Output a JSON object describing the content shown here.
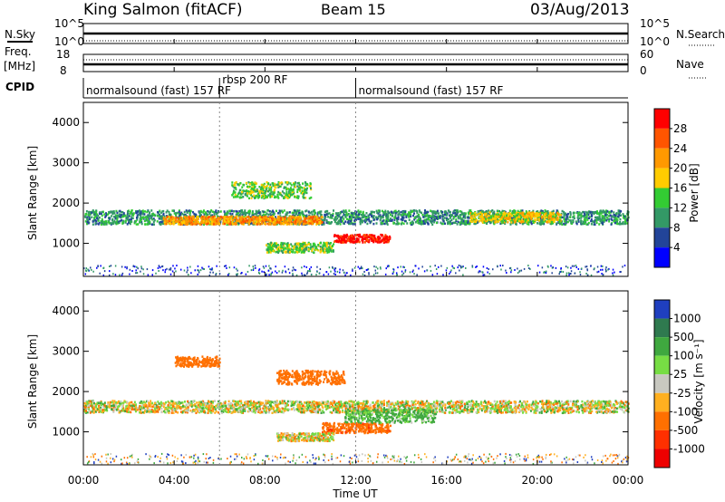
{
  "header": {
    "station": "King Salmon (fitACF)",
    "beam": "Beam 15",
    "date": "03/Aug/2013"
  },
  "noise_panel": {
    "left_label": "N.Sky",
    "right_label": "N.Search",
    "left_ticks": [
      "10^5",
      "10^0"
    ],
    "right_ticks": [
      "10^5",
      "10^0"
    ]
  },
  "freq_panel": {
    "left_label_top": "Freq.",
    "left_label_bottom": "[MHz]",
    "right_label": "Nave",
    "left_ticks": [
      "18",
      "8"
    ],
    "right_ticks": [
      "60",
      "0"
    ]
  },
  "cpid": {
    "label": "CPID",
    "segments": [
      {
        "name": "normalsound (fast) 157 RF",
        "start": 0,
        "end": 6
      },
      {
        "name": "rbsp 200 RF",
        "start": 6,
        "end": 12
      },
      {
        "name": "normalsound (fast) 157 RF",
        "start": 12,
        "end": 24
      }
    ]
  },
  "x_axis": {
    "label": "Time UT",
    "ticks": [
      "00:00",
      "04:00",
      "08:00",
      "12:00",
      "16:00",
      "20:00",
      "00:00"
    ]
  },
  "power_panel": {
    "ylabel": "Slant Range [km]",
    "colorbar_label": "Power [dB]",
    "colorbar_ticks": [
      "28",
      "24",
      "20",
      "16",
      "12",
      "8",
      "4"
    ],
    "colors": [
      "#ff0000",
      "#ff5500",
      "#ff9900",
      "#ffcc00",
      "#33cc33",
      "#339966",
      "#224499",
      "#0000ff"
    ]
  },
  "velocity_panel": {
    "ylabel": "Slant Range [km]",
    "colorbar_label": "Velocity [m s⁻¹]",
    "colorbar_ticks": [
      "1000",
      "500",
      "100",
      "25",
      "-25",
      "-100",
      "-500",
      "-1000"
    ],
    "colors": [
      "#1f3fbf",
      "#2f7a4f",
      "#3fa83f",
      "#77dd44",
      "#c8c8c0",
      "#ffb020",
      "#ff7000",
      "#ff3000",
      "#ee0000"
    ]
  },
  "chart_data": {
    "type": "heatmap",
    "x_range_hours": [
      0,
      24
    ],
    "y_range_km": [
      180,
      4500
    ],
    "y_ticks": [
      "1000",
      "2000",
      "3000",
      "4000"
    ],
    "power_regions": [
      {
        "t0": 0,
        "t1": 24,
        "r0": 1450,
        "r1": 1800,
        "level_db": 8
      },
      {
        "t0": 3.5,
        "t1": 10.5,
        "r0": 1450,
        "r1": 1650,
        "level_db": 20
      },
      {
        "t0": 6.5,
        "t1": 10,
        "r0": 2100,
        "r1": 2500,
        "level_db": 12
      },
      {
        "t0": 8,
        "t1": 11,
        "r0": 750,
        "r1": 1000,
        "level_db": 12
      },
      {
        "t0": 11,
        "t1": 13.5,
        "r0": 1000,
        "r1": 1200,
        "level_db": 28
      },
      {
        "t0": 17,
        "t1": 21,
        "r0": 1500,
        "r1": 1750,
        "level_db": 16
      }
    ],
    "velocity_regions": [
      {
        "t0": 0,
        "t1": 24,
        "r0": 1450,
        "r1": 1750,
        "velocity": 0
      },
      {
        "t0": 8.5,
        "t1": 11.5,
        "r0": 2150,
        "r1": 2500,
        "velocity": -300
      },
      {
        "t0": 4,
        "t1": 6,
        "r0": 2600,
        "r1": 2850,
        "velocity": -300
      },
      {
        "t0": 10.5,
        "t1": 13.5,
        "r0": 950,
        "r1": 1200,
        "velocity": -400
      },
      {
        "t0": 11.5,
        "t1": 15.5,
        "r0": 1200,
        "r1": 1550,
        "velocity": 150
      },
      {
        "t0": 8.5,
        "t1": 11,
        "r0": 750,
        "r1": 950,
        "velocity": 0
      }
    ]
  }
}
